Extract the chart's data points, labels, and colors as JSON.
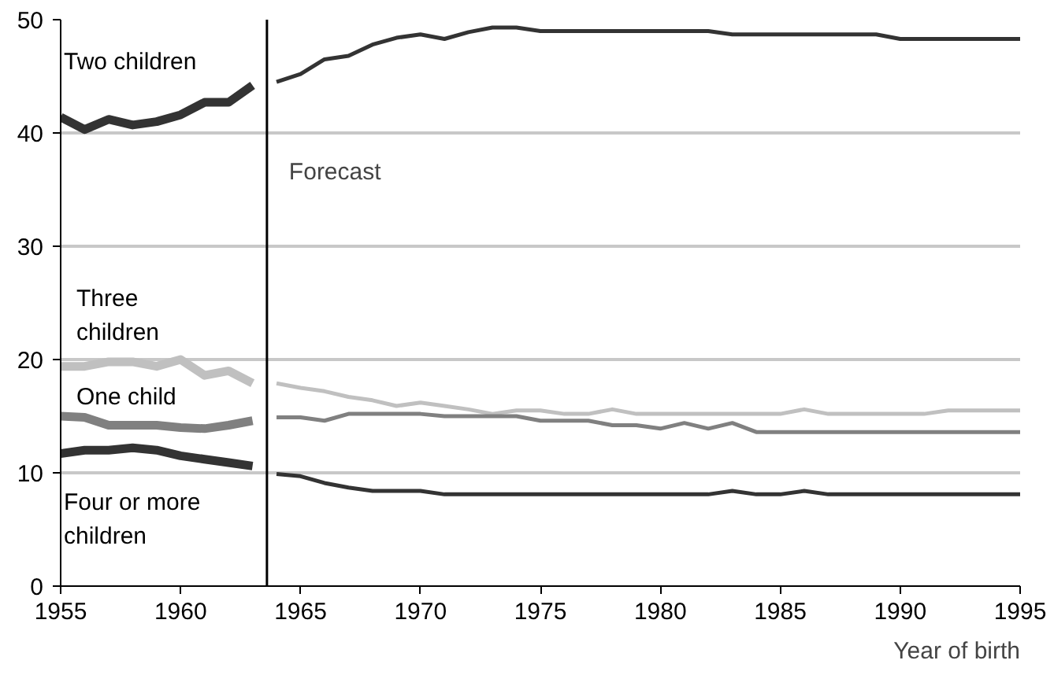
{
  "chart_data": {
    "type": "line",
    "xlabel": "Year of birth",
    "xlim": [
      1955,
      1995
    ],
    "xticks": [
      1955,
      1960,
      1965,
      1970,
      1975,
      1980,
      1985,
      1990,
      1995
    ],
    "ylim": [
      0,
      50
    ],
    "yticks": [
      0,
      10,
      20,
      30,
      40,
      50
    ],
    "grid": "y",
    "series": [
      {
        "name": "Two children",
        "color": "#333333",
        "x": [
          1955,
          1956,
          1957,
          1958,
          1959,
          1960,
          1961,
          1962,
          1963
        ],
        "values": [
          41.4,
          40.3,
          41.2,
          40.7,
          41.0,
          41.6,
          42.7,
          42.7,
          44.2
        ]
      },
      {
        "name": "Three\nchildren",
        "color": "#c0c0c0",
        "x": [
          1955,
          1956,
          1957,
          1958,
          1959,
          1960,
          1961,
          1962,
          1963
        ],
        "values": [
          19.4,
          19.4,
          19.8,
          19.8,
          19.4,
          20.0,
          18.6,
          19.0,
          17.9
        ]
      },
      {
        "name": "One child",
        "color": "#808080",
        "x": [
          1955,
          1956,
          1957,
          1958,
          1959,
          1960,
          1961,
          1962,
          1963
        ],
        "values": [
          15.0,
          14.9,
          14.2,
          14.2,
          14.2,
          14.0,
          13.9,
          14.2,
          14.6
        ]
      },
      {
        "name": "Four or more\nchildren",
        "color": "#333333",
        "x": [
          1955,
          1956,
          1957,
          1958,
          1959,
          1960,
          1961,
          1962,
          1963
        ],
        "values": [
          11.7,
          12.0,
          12.0,
          12.2,
          12.0,
          11.5,
          11.2,
          10.9,
          10.6
        ]
      },
      {
        "color": "#333333",
        "x": [
          1964,
          1965,
          1966,
          1967,
          1968,
          1969,
          1970,
          1971,
          1972,
          1973,
          1974,
          1975,
          1976,
          1977,
          1978,
          1979,
          1980,
          1981,
          1982,
          1983,
          1984,
          1985,
          1986,
          1987,
          1988,
          1989,
          1990,
          1991,
          1992,
          1993,
          1994,
          1995
        ],
        "values": [
          44.5,
          45.2,
          46.5,
          46.8,
          47.8,
          48.4,
          48.7,
          48.3,
          48.9,
          49.3,
          49.3,
          49.0,
          49.0,
          49.0,
          49.0,
          49.0,
          49.0,
          49.0,
          49.0,
          48.7,
          48.7,
          48.7,
          48.7,
          48.7,
          48.7,
          48.7,
          48.3,
          48.3,
          48.3,
          48.3,
          48.3,
          48.3
        ]
      },
      {
        "color": "#c0c0c0",
        "x": [
          1964,
          1965,
          1966,
          1967,
          1968,
          1969,
          1970,
          1971,
          1972,
          1973,
          1974,
          1975,
          1976,
          1977,
          1978,
          1979,
          1980,
          1981,
          1982,
          1983,
          1984,
          1985,
          1986,
          1987,
          1988,
          1989,
          1990,
          1991,
          1992,
          1993,
          1994,
          1995
        ],
        "values": [
          17.9,
          17.5,
          17.2,
          16.7,
          16.4,
          15.9,
          16.2,
          15.9,
          15.6,
          15.2,
          15.5,
          15.5,
          15.2,
          15.2,
          15.6,
          15.2,
          15.2,
          15.2,
          15.2,
          15.2,
          15.2,
          15.2,
          15.6,
          15.2,
          15.2,
          15.2,
          15.2,
          15.2,
          15.5,
          15.5,
          15.5,
          15.5
        ]
      },
      {
        "color": "#808080",
        "x": [
          1964,
          1965,
          1966,
          1967,
          1968,
          1969,
          1970,
          1971,
          1972,
          1973,
          1974,
          1975,
          1976,
          1977,
          1978,
          1979,
          1980,
          1981,
          1982,
          1983,
          1984,
          1985,
          1986,
          1987,
          1988,
          1989,
          1990,
          1991,
          1992,
          1993,
          1994,
          1995
        ],
        "values": [
          14.9,
          14.9,
          14.6,
          15.2,
          15.2,
          15.2,
          15.2,
          15.0,
          15.0,
          15.0,
          15.0,
          14.6,
          14.6,
          14.6,
          14.2,
          14.2,
          13.9,
          14.4,
          13.9,
          14.4,
          13.6,
          13.6,
          13.6,
          13.6,
          13.6,
          13.6,
          13.6,
          13.6,
          13.6,
          13.6,
          13.6,
          13.6
        ]
      },
      {
        "color": "#333333",
        "x": [
          1964,
          1965,
          1966,
          1967,
          1968,
          1969,
          1970,
          1971,
          1972,
          1973,
          1974,
          1975,
          1976,
          1977,
          1978,
          1979,
          1980,
          1981,
          1982,
          1983,
          1984,
          1985,
          1986,
          1987,
          1988,
          1989,
          1990,
          1991,
          1992,
          1993,
          1994,
          1995
        ],
        "values": [
          9.9,
          9.7,
          9.1,
          8.7,
          8.4,
          8.4,
          8.4,
          8.1,
          8.1,
          8.1,
          8.1,
          8.1,
          8.1,
          8.1,
          8.1,
          8.1,
          8.1,
          8.1,
          8.1,
          8.4,
          8.1,
          8.1,
          8.4,
          8.1,
          8.1,
          8.1,
          8.1,
          8.1,
          8.1,
          8.1,
          8.1,
          8.1
        ]
      }
    ],
    "ref_lines": [
      {
        "axis": "x",
        "value": 1963.6,
        "label": "Forecast",
        "color": "#000000"
      }
    ]
  }
}
